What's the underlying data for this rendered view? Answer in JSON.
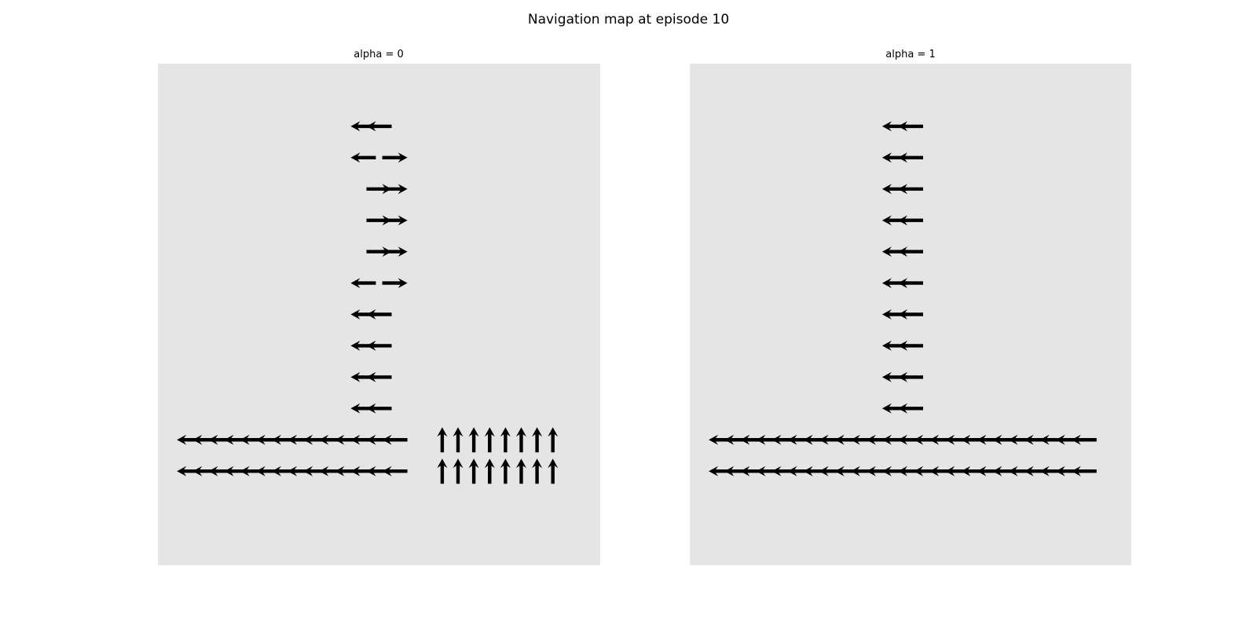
{
  "figure": {
    "title": "Navigation map at episode 10"
  },
  "chart_data": [
    {
      "type": "quiver",
      "title": "alpha = 0",
      "xlim": [
        -0.5,
        13.5
      ],
      "ylim": [
        15.5,
        -0.5
      ],
      "grid": false,
      "axes_visible": false,
      "vectors": [
        {
          "x": 0.5,
          "y": 2.5,
          "u": -1,
          "v": 0
        },
        {
          "x": 1,
          "y": 2.5,
          "u": -1,
          "v": 0
        },
        {
          "x": 1.5,
          "y": 2.5,
          "u": -1,
          "v": 0
        },
        {
          "x": 2,
          "y": 2.5,
          "u": -1,
          "v": 0
        },
        {
          "x": 2.5,
          "y": 2.5,
          "u": -1,
          "v": 0
        },
        {
          "x": 3,
          "y": 2.5,
          "u": -1,
          "v": 0
        },
        {
          "x": 3.5,
          "y": 2.5,
          "u": -1,
          "v": 0
        },
        {
          "x": 4,
          "y": 2.5,
          "u": -1,
          "v": 0
        },
        {
          "x": 4.5,
          "y": 2.5,
          "u": -1,
          "v": 0
        },
        {
          "x": 5,
          "y": 2.5,
          "u": -1,
          "v": 0
        },
        {
          "x": 5.5,
          "y": 2.5,
          "u": -1,
          "v": 0
        },
        {
          "x": 6,
          "y": 2.5,
          "u": -1,
          "v": 0
        },
        {
          "x": 6.5,
          "y": 2.5,
          "u": -1,
          "v": 0
        },
        {
          "x": 7,
          "y": 2.5,
          "u": -1,
          "v": 0
        },
        {
          "x": 0.5,
          "y": 3.5,
          "u": -1,
          "v": 0
        },
        {
          "x": 1,
          "y": 3.5,
          "u": -1,
          "v": 0
        },
        {
          "x": 1.5,
          "y": 3.5,
          "u": -1,
          "v": 0
        },
        {
          "x": 2,
          "y": 3.5,
          "u": -1,
          "v": 0
        },
        {
          "x": 2.5,
          "y": 3.5,
          "u": -1,
          "v": 0
        },
        {
          "x": 3,
          "y": 3.5,
          "u": -1,
          "v": 0
        },
        {
          "x": 3.5,
          "y": 3.5,
          "u": -1,
          "v": 0
        },
        {
          "x": 4,
          "y": 3.5,
          "u": -1,
          "v": 0
        },
        {
          "x": 4.5,
          "y": 3.5,
          "u": -1,
          "v": 0
        },
        {
          "x": 5,
          "y": 3.5,
          "u": -1,
          "v": 0
        },
        {
          "x": 5.5,
          "y": 3.5,
          "u": -1,
          "v": 0
        },
        {
          "x": 6,
          "y": 3.5,
          "u": -1,
          "v": 0
        },
        {
          "x": 6.5,
          "y": 3.5,
          "u": -1,
          "v": 0
        },
        {
          "x": 7,
          "y": 3.5,
          "u": -1,
          "v": 0
        },
        {
          "x": 8.5,
          "y": 2.5,
          "u": 0,
          "v": 1
        },
        {
          "x": 9,
          "y": 2.5,
          "u": 0,
          "v": 1
        },
        {
          "x": 9.5,
          "y": 2.5,
          "u": 0,
          "v": 1
        },
        {
          "x": 10,
          "y": 2.5,
          "u": 0,
          "v": 1
        },
        {
          "x": 10.5,
          "y": 2.5,
          "u": 0,
          "v": 1
        },
        {
          "x": 11,
          "y": 2.5,
          "u": 0,
          "v": 1
        },
        {
          "x": 11.5,
          "y": 2.5,
          "u": 0,
          "v": 1
        },
        {
          "x": 12,
          "y": 2.5,
          "u": 0,
          "v": 1
        },
        {
          "x": 8.5,
          "y": 3.5,
          "u": 0,
          "v": 1
        },
        {
          "x": 9,
          "y": 3.5,
          "u": 0,
          "v": 1
        },
        {
          "x": 9.5,
          "y": 3.5,
          "u": 0,
          "v": 1
        },
        {
          "x": 10,
          "y": 3.5,
          "u": 0,
          "v": 1
        },
        {
          "x": 10.5,
          "y": 3.5,
          "u": 0,
          "v": 1
        },
        {
          "x": 11,
          "y": 3.5,
          "u": 0,
          "v": 1
        },
        {
          "x": 11.5,
          "y": 3.5,
          "u": 0,
          "v": 1
        },
        {
          "x": 12,
          "y": 3.5,
          "u": 0,
          "v": 1
        },
        {
          "x": 6,
          "y": 4.5,
          "u": -1,
          "v": 0
        },
        {
          "x": 6.5,
          "y": 4.5,
          "u": -1,
          "v": 0
        },
        {
          "x": 6,
          "y": 5.5,
          "u": -1,
          "v": 0
        },
        {
          "x": 6.5,
          "y": 5.5,
          "u": -1,
          "v": 0
        },
        {
          "x": 6,
          "y": 6.5,
          "u": -1,
          "v": 0
        },
        {
          "x": 6.5,
          "y": 6.5,
          "u": -1,
          "v": 0
        },
        {
          "x": 6,
          "y": 7.5,
          "u": -1,
          "v": 0
        },
        {
          "x": 6.5,
          "y": 7.5,
          "u": -1,
          "v": 0
        },
        {
          "x": 6,
          "y": 8.5,
          "u": -1,
          "v": 0
        },
        {
          "x": 7,
          "y": 8.5,
          "u": 1,
          "v": 0
        },
        {
          "x": 6.5,
          "y": 9.5,
          "u": 1,
          "v": 0
        },
        {
          "x": 7,
          "y": 9.5,
          "u": 1,
          "v": 0
        },
        {
          "x": 6.5,
          "y": 10.5,
          "u": 1,
          "v": 0
        },
        {
          "x": 7,
          "y": 10.5,
          "u": 1,
          "v": 0
        },
        {
          "x": 6.5,
          "y": 11.5,
          "u": 1,
          "v": 0
        },
        {
          "x": 7,
          "y": 11.5,
          "u": 1,
          "v": 0
        },
        {
          "x": 6,
          "y": 12.5,
          "u": -1,
          "v": 0
        },
        {
          "x": 7,
          "y": 12.5,
          "u": 1,
          "v": 0
        },
        {
          "x": 6,
          "y": 13.5,
          "u": -1,
          "v": 0
        },
        {
          "x": 6.5,
          "y": 13.5,
          "u": -1,
          "v": 0
        }
      ]
    },
    {
      "type": "quiver",
      "title": "alpha = 1",
      "xlim": [
        -0.5,
        13.5
      ],
      "ylim": [
        15.5,
        -0.5
      ],
      "grid": false,
      "axes_visible": false,
      "vectors": [
        {
          "x": 0.5,
          "y": 2.5,
          "u": -1,
          "v": 0
        },
        {
          "x": 1,
          "y": 2.5,
          "u": -1,
          "v": 0
        },
        {
          "x": 1.5,
          "y": 2.5,
          "u": -1,
          "v": 0
        },
        {
          "x": 2,
          "y": 2.5,
          "u": -1,
          "v": 0
        },
        {
          "x": 2.5,
          "y": 2.5,
          "u": -1,
          "v": 0
        },
        {
          "x": 3,
          "y": 2.5,
          "u": -1,
          "v": 0
        },
        {
          "x": 3.5,
          "y": 2.5,
          "u": -1,
          "v": 0
        },
        {
          "x": 4,
          "y": 2.5,
          "u": -1,
          "v": 0
        },
        {
          "x": 4.5,
          "y": 2.5,
          "u": -1,
          "v": 0
        },
        {
          "x": 5,
          "y": 2.5,
          "u": -1,
          "v": 0
        },
        {
          "x": 5.5,
          "y": 2.5,
          "u": -1,
          "v": 0
        },
        {
          "x": 6,
          "y": 2.5,
          "u": -1,
          "v": 0
        },
        {
          "x": 6.5,
          "y": 2.5,
          "u": -1,
          "v": 0
        },
        {
          "x": 7,
          "y": 2.5,
          "u": -1,
          "v": 0
        },
        {
          "x": 7.5,
          "y": 2.5,
          "u": -1,
          "v": 0
        },
        {
          "x": 8,
          "y": 2.5,
          "u": -1,
          "v": 0
        },
        {
          "x": 8.5,
          "y": 2.5,
          "u": -1,
          "v": 0
        },
        {
          "x": 9,
          "y": 2.5,
          "u": -1,
          "v": 0
        },
        {
          "x": 9.5,
          "y": 2.5,
          "u": -1,
          "v": 0
        },
        {
          "x": 10,
          "y": 2.5,
          "u": -1,
          "v": 0
        },
        {
          "x": 10.5,
          "y": 2.5,
          "u": -1,
          "v": 0
        },
        {
          "x": 11,
          "y": 2.5,
          "u": -1,
          "v": 0
        },
        {
          "x": 11.5,
          "y": 2.5,
          "u": -1,
          "v": 0
        },
        {
          "x": 12,
          "y": 2.5,
          "u": -1,
          "v": 0
        },
        {
          "x": 0.5,
          "y": 3.5,
          "u": -1,
          "v": 0
        },
        {
          "x": 1,
          "y": 3.5,
          "u": -1,
          "v": 0
        },
        {
          "x": 1.5,
          "y": 3.5,
          "u": -1,
          "v": 0
        },
        {
          "x": 2,
          "y": 3.5,
          "u": -1,
          "v": 0
        },
        {
          "x": 2.5,
          "y": 3.5,
          "u": -1,
          "v": 0
        },
        {
          "x": 3,
          "y": 3.5,
          "u": -1,
          "v": 0
        },
        {
          "x": 3.5,
          "y": 3.5,
          "u": -1,
          "v": 0
        },
        {
          "x": 4,
          "y": 3.5,
          "u": -1,
          "v": 0
        },
        {
          "x": 4.5,
          "y": 3.5,
          "u": -1,
          "v": 0
        },
        {
          "x": 5,
          "y": 3.5,
          "u": -1,
          "v": 0
        },
        {
          "x": 5.5,
          "y": 3.5,
          "u": -1,
          "v": 0
        },
        {
          "x": 6,
          "y": 3.5,
          "u": -1,
          "v": 0
        },
        {
          "x": 6.5,
          "y": 3.5,
          "u": -1,
          "v": 0
        },
        {
          "x": 7,
          "y": 3.5,
          "u": -1,
          "v": 0
        },
        {
          "x": 7.5,
          "y": 3.5,
          "u": -1,
          "v": 0
        },
        {
          "x": 8,
          "y": 3.5,
          "u": -1,
          "v": 0
        },
        {
          "x": 8.5,
          "y": 3.5,
          "u": -1,
          "v": 0
        },
        {
          "x": 9,
          "y": 3.5,
          "u": -1,
          "v": 0
        },
        {
          "x": 9.5,
          "y": 3.5,
          "u": -1,
          "v": 0
        },
        {
          "x": 10,
          "y": 3.5,
          "u": -1,
          "v": 0
        },
        {
          "x": 10.5,
          "y": 3.5,
          "u": -1,
          "v": 0
        },
        {
          "x": 11,
          "y": 3.5,
          "u": -1,
          "v": 0
        },
        {
          "x": 11.5,
          "y": 3.5,
          "u": -1,
          "v": 0
        },
        {
          "x": 12,
          "y": 3.5,
          "u": -1,
          "v": 0
        },
        {
          "x": 6,
          "y": 4.5,
          "u": -1,
          "v": 0
        },
        {
          "x": 6.5,
          "y": 4.5,
          "u": -1,
          "v": 0
        },
        {
          "x": 6,
          "y": 5.5,
          "u": -1,
          "v": 0
        },
        {
          "x": 6.5,
          "y": 5.5,
          "u": -1,
          "v": 0
        },
        {
          "x": 6,
          "y": 6.5,
          "u": -1,
          "v": 0
        },
        {
          "x": 6.5,
          "y": 6.5,
          "u": -1,
          "v": 0
        },
        {
          "x": 6,
          "y": 7.5,
          "u": -1,
          "v": 0
        },
        {
          "x": 6.5,
          "y": 7.5,
          "u": -1,
          "v": 0
        },
        {
          "x": 6,
          "y": 8.5,
          "u": -1,
          "v": 0
        },
        {
          "x": 6.5,
          "y": 8.5,
          "u": -1,
          "v": 0
        },
        {
          "x": 6,
          "y": 9.5,
          "u": -1,
          "v": 0
        },
        {
          "x": 6.5,
          "y": 9.5,
          "u": -1,
          "v": 0
        },
        {
          "x": 6,
          "y": 10.5,
          "u": -1,
          "v": 0
        },
        {
          "x": 6.5,
          "y": 10.5,
          "u": -1,
          "v": 0
        },
        {
          "x": 6,
          "y": 11.5,
          "u": -1,
          "v": 0
        },
        {
          "x": 6.5,
          "y": 11.5,
          "u": -1,
          "v": 0
        },
        {
          "x": 6,
          "y": 12.5,
          "u": -1,
          "v": 0
        },
        {
          "x": 6.5,
          "y": 12.5,
          "u": -1,
          "v": 0
        },
        {
          "x": 6,
          "y": 13.5,
          "u": -1,
          "v": 0
        },
        {
          "x": 6.5,
          "y": 13.5,
          "u": -1,
          "v": 0
        }
      ]
    }
  ]
}
